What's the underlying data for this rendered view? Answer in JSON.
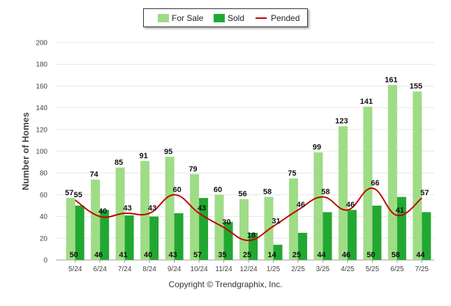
{
  "chart_data": {
    "type": "bar",
    "ylabel": "Number of Homes",
    "ylim": [
      0,
      200
    ],
    "yticks": [
      0,
      20,
      40,
      60,
      80,
      100,
      120,
      140,
      160,
      180,
      200
    ],
    "categories": [
      "5/24",
      "6/24",
      "7/24",
      "8/24",
      "9/24",
      "10/24",
      "11/24",
      "12/24",
      "1/25",
      "2/25",
      "3/25",
      "4/25",
      "5/25",
      "6/25",
      "7/25"
    ],
    "series": [
      {
        "name": "For Sale",
        "kind": "bar",
        "color": "#9fdc86",
        "values": [
          57,
          74,
          85,
          91,
          95,
          79,
          60,
          56,
          58,
          75,
          99,
          123,
          141,
          161,
          155
        ]
      },
      {
        "name": "Sold",
        "kind": "bar",
        "color": "#22a832",
        "values": [
          50,
          46,
          41,
          40,
          43,
          57,
          35,
          25,
          14,
          25,
          44,
          46,
          50,
          58,
          44
        ]
      },
      {
        "name": "Pended",
        "kind": "line",
        "color": "#c00000",
        "values": [
          55,
          40,
          43,
          43,
          60,
          43,
          30,
          18,
          31,
          46,
          58,
          46,
          66,
          41,
          57
        ]
      }
    ],
    "legend": "top-center",
    "grid": true
  },
  "footer": "Copyright © Trendgraphix, Inc."
}
